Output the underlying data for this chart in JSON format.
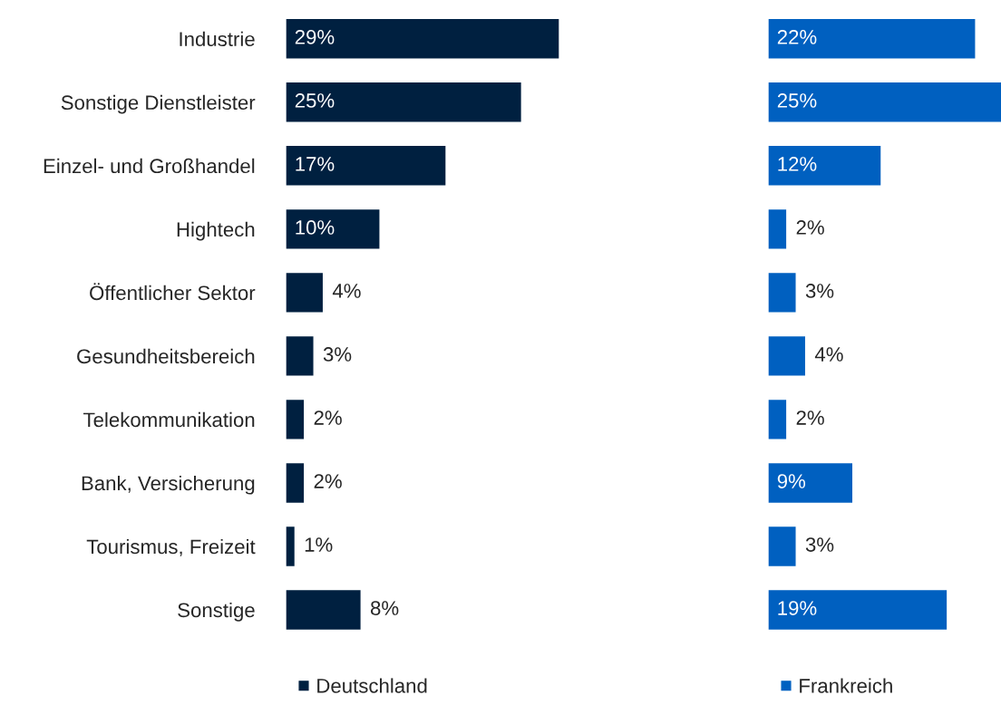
{
  "chart_data": [
    {
      "type": "bar",
      "orientation": "horizontal",
      "categories": [
        "Industrie",
        "Sonstige Dienstleister",
        "Einzel- und Großhandel",
        "Hightech",
        "Öffentlicher Sektor",
        "Gesundheitsbereich",
        "Telekommunikation",
        "Bank, Versicherung",
        "Tourismus, Freizeit",
        "Sonstige"
      ],
      "tick_labels": "y",
      "legend": "bottom",
      "series": [
        {
          "name": "Deutschland",
          "color": "#002040",
          "values": [
            29,
            25,
            17,
            10,
            4,
            3,
            2,
            2,
            1,
            8
          ],
          "value_labels": [
            "29%",
            "25%",
            "17%",
            "10%",
            "4%",
            "3%",
            "2%",
            "2%",
            "1%",
            "8%"
          ]
        }
      ]
    },
    {
      "type": "bar",
      "orientation": "horizontal",
      "categories": [
        null,
        null,
        null,
        null,
        null,
        null,
        null,
        null,
        null,
        null
      ],
      "tick_labels": false,
      "legend": "bottom",
      "series": [
        {
          "name": "Frankreich",
          "color": "#0060c0",
          "values": [
            22,
            25,
            12,
            2,
            3,
            4,
            2,
            9,
            3,
            19
          ],
          "value_labels": [
            "22%",
            "25%",
            "12%",
            "2%",
            "3%",
            "4%",
            "2%",
            "9%",
            "3%",
            "19%"
          ]
        }
      ]
    }
  ]
}
